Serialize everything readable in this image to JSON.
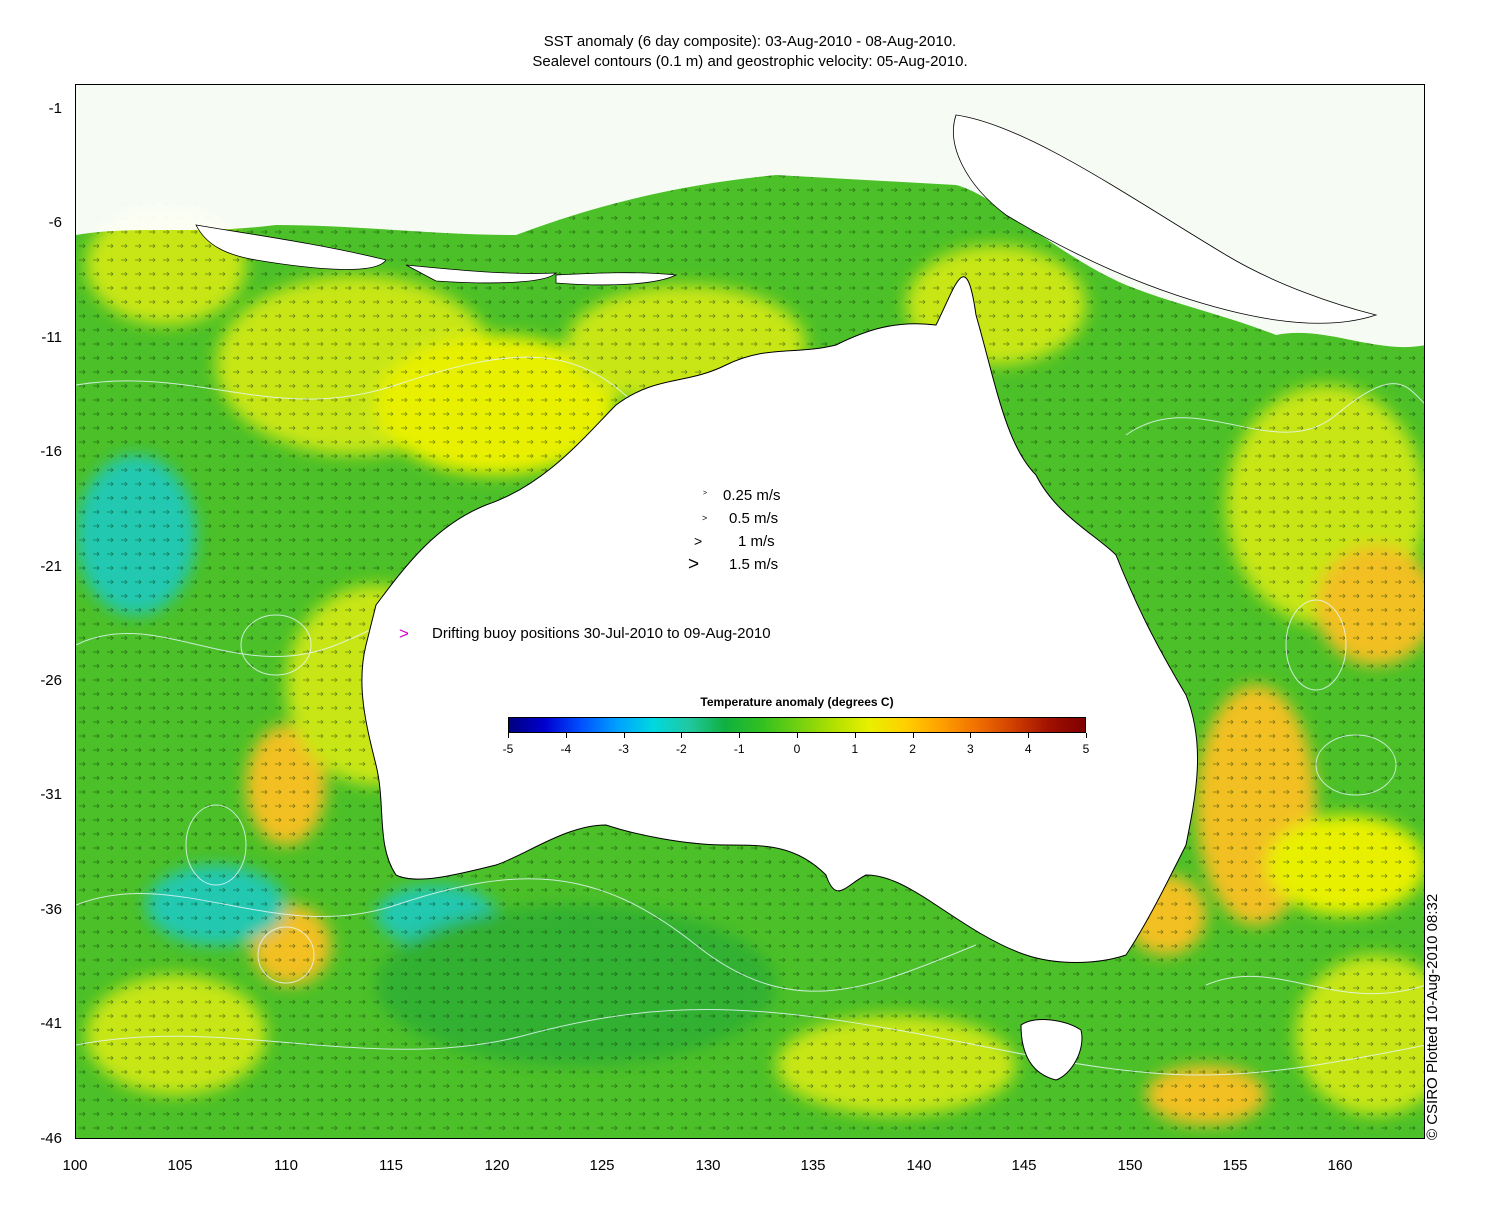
{
  "header": {
    "title_line1": "SST anomaly (6 day composite): 03-Aug-2010 - 08-Aug-2010.",
    "title_line2": "Sealevel contours (0.1 m) and geostrophic velocity: 05-Aug-2010."
  },
  "axes": {
    "x_ticks": [
      "100",
      "105",
      "110",
      "115",
      "120",
      "125",
      "130",
      "135",
      "140",
      "145",
      "150",
      "155",
      "160"
    ],
    "y_ticks": [
      "-1",
      "-6",
      "-11",
      "-16",
      "-21",
      "-26",
      "-31",
      "-36",
      "-41",
      "-46"
    ],
    "x_range": [
      100,
      164
    ],
    "y_range": [
      -46,
      -0.3
    ]
  },
  "velocity_legend": [
    {
      "label": "0.25 m/s",
      "speed": 0.25
    },
    {
      "label": "0.5 m/s",
      "speed": 0.5
    },
    {
      "label": "1 m/s",
      "speed": 1
    },
    {
      "label": "1.5 m/s",
      "speed": 1.5
    }
  ],
  "buoy_legend": {
    "marker": ">",
    "label": "Drifting buoy positions 30-Jul-2010 to 09-Aug-2010",
    "color": "#d400d4"
  },
  "colorbar": {
    "title": "Temperature anomaly (degrees C)",
    "ticks": [
      "-5",
      "-4",
      "-3",
      "-2",
      "-1",
      "0",
      "1",
      "2",
      "3",
      "4",
      "5"
    ],
    "range": [
      -5,
      5
    ],
    "colors": [
      "#00007f",
      "#0000d0",
      "#0050ff",
      "#00a0ff",
      "#00d8e0",
      "#20c8a0",
      "#10b040",
      "#30c020",
      "#70d010",
      "#b0e000",
      "#e8f000",
      "#ffd000",
      "#ffa000",
      "#f07000",
      "#d04000",
      "#a01000",
      "#7f0000"
    ]
  },
  "credit": "© CSIRO Plotted 10-Aug-2010 08:32",
  "map_colors": {
    "land": "#ffffff",
    "ocean_base": "#4cc028",
    "warm_patch": "#f2c020",
    "yellow_patch": "#c8e614",
    "cool_patch": "#20c8b0",
    "contour": "#e8f8ff",
    "coast": "#000000"
  }
}
